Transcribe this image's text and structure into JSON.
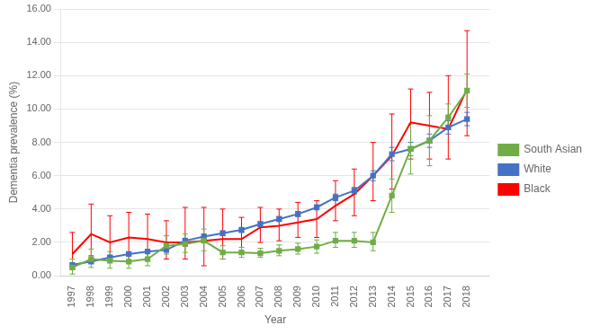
{
  "chart_data": {
    "type": "line",
    "xlabel": "Year",
    "ylabel": "Dementia prevalence (%)",
    "x": [
      1997,
      1998,
      1999,
      2000,
      2001,
      2002,
      2003,
      2004,
      2005,
      2006,
      2007,
      2008,
      2009,
      2010,
      2011,
      2012,
      2013,
      2014,
      2015,
      2016,
      2017,
      2018
    ],
    "series": [
      {
        "name": "Black",
        "color": "#ff0000",
        "marker": "none",
        "values": [
          1.3,
          2.5,
          2.0,
          2.3,
          2.2,
          2.0,
          2.0,
          2.1,
          2.2,
          2.2,
          2.9,
          3.0,
          3.2,
          3.4,
          4.2,
          4.9,
          6.0,
          7.2,
          9.2,
          9.0,
          8.8,
          11.2
        ],
        "err_lo": [
          0.9,
          1.3,
          0.8,
          1.5,
          1.3,
          1.0,
          1.0,
          1.5,
          1.2,
          0.9,
          0.9,
          0.9,
          0.9,
          1.1,
          0.9,
          1.3,
          1.5,
          2.0,
          2.2,
          2.0,
          1.8,
          2.8
        ],
        "err_hi": [
          1.3,
          1.8,
          1.6,
          1.5,
          1.5,
          1.3,
          2.1,
          2.0,
          1.8,
          1.3,
          1.2,
          1.0,
          1.2,
          1.1,
          1.5,
          1.5,
          2.0,
          2.5,
          2.0,
          2.0,
          3.2,
          3.5
        ]
      },
      {
        "name": "White",
        "color": "#4472c4",
        "marker": "square",
        "values": [
          0.65,
          0.85,
          1.1,
          1.3,
          1.45,
          1.55,
          2.1,
          2.35,
          2.55,
          2.75,
          3.1,
          3.4,
          3.7,
          4.1,
          4.7,
          5.1,
          6.0,
          7.3,
          7.6,
          8.1,
          8.9,
          9.4
        ],
        "err_lo": [
          0.1,
          0.1,
          0.1,
          0.1,
          0.1,
          0.1,
          0.15,
          0.15,
          0.15,
          0.15,
          0.15,
          0.15,
          0.15,
          0.15,
          0.2,
          0.2,
          0.3,
          0.4,
          0.4,
          0.4,
          0.4,
          0.4
        ],
        "err_hi": [
          0.1,
          0.1,
          0.1,
          0.1,
          0.1,
          0.1,
          0.15,
          0.15,
          0.15,
          0.15,
          0.15,
          0.15,
          0.15,
          0.15,
          0.2,
          0.2,
          0.3,
          0.4,
          0.4,
          0.4,
          0.4,
          0.4
        ]
      },
      {
        "name": "South Asian",
        "color": "#70ad47",
        "marker": "square",
        "values": [
          0.5,
          1.0,
          0.9,
          0.85,
          1.0,
          1.8,
          1.9,
          2.1,
          1.4,
          1.4,
          1.35,
          1.5,
          1.6,
          1.75,
          2.1,
          2.1,
          2.0,
          4.8,
          7.6,
          8.1,
          9.5,
          11.1
        ],
        "err_lo": [
          0.4,
          0.5,
          0.45,
          0.4,
          0.4,
          0.5,
          0.5,
          0.6,
          0.4,
          0.3,
          0.25,
          0.3,
          0.3,
          0.4,
          0.4,
          0.4,
          0.5,
          1.0,
          1.5,
          1.5,
          0.7,
          1.0
        ],
        "err_hi": [
          0.5,
          0.6,
          0.55,
          0.5,
          0.5,
          0.6,
          0.6,
          0.7,
          0.4,
          0.3,
          0.3,
          0.35,
          0.35,
          0.4,
          0.5,
          0.5,
          0.6,
          1.0,
          1.5,
          1.5,
          0.8,
          1.0
        ]
      }
    ],
    "xlim": [
      1996.4,
      2019.2
    ],
    "xticks": [
      1997,
      1998,
      1999,
      2000,
      2001,
      2002,
      2003,
      2004,
      2005,
      2006,
      2007,
      2008,
      2009,
      2010,
      2011,
      2012,
      2013,
      2014,
      2015,
      2016,
      2017,
      2018
    ],
    "ylim": [
      0.0,
      16.0
    ],
    "yticks": [
      {
        "value": 0,
        "label": "0.00"
      },
      {
        "value": 2,
        "label": "2.00"
      },
      {
        "value": 4,
        "label": "4.00"
      },
      {
        "value": 6,
        "label": "6.00"
      },
      {
        "value": 8,
        "label": "8.00"
      },
      {
        "value": 10,
        "label": "10.00"
      },
      {
        "value": 12,
        "label": "12.00"
      },
      {
        "value": 14,
        "label": "14.00"
      },
      {
        "value": 16,
        "label": "16.00"
      }
    ],
    "grid": true,
    "legend": "right"
  }
}
